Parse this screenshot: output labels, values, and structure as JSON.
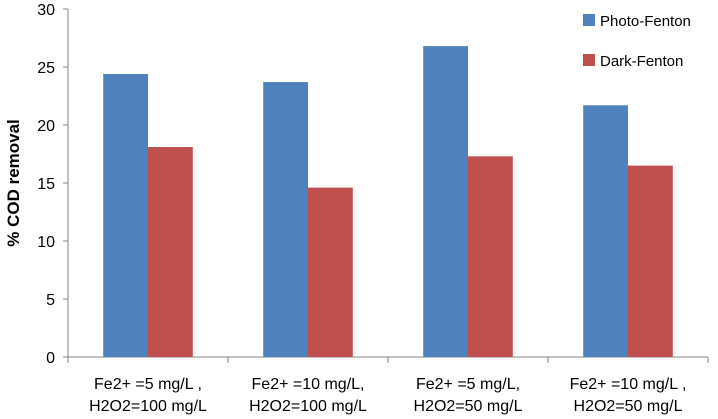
{
  "chart_data": {
    "type": "bar",
    "title": "",
    "xlabel": "",
    "ylabel": "% COD removal",
    "ylim": [
      0,
      30
    ],
    "yticks": [
      0,
      5,
      10,
      15,
      20,
      25,
      30
    ],
    "grid": false,
    "legend_position": "top-right",
    "categories": [
      [
        "Fe2+ =5 mg/L ,",
        "H2O2=100 mg/L"
      ],
      [
        "Fe2+ =10 mg/L,",
        "H2O2=100 mg/L"
      ],
      [
        "Fe2+ =5 mg/L,",
        "H2O2=50 mg/L"
      ],
      [
        "Fe2+ =10 mg/L ,",
        "H2O2=50 mg/L"
      ]
    ],
    "series": [
      {
        "name": "Photo-Fenton",
        "color": "#4F81BD",
        "values": [
          24.4,
          23.7,
          26.8,
          21.7
        ]
      },
      {
        "name": "Dark-Fenton",
        "color": "#C0504D",
        "values": [
          18.1,
          14.6,
          17.3,
          16.5
        ]
      }
    ]
  }
}
